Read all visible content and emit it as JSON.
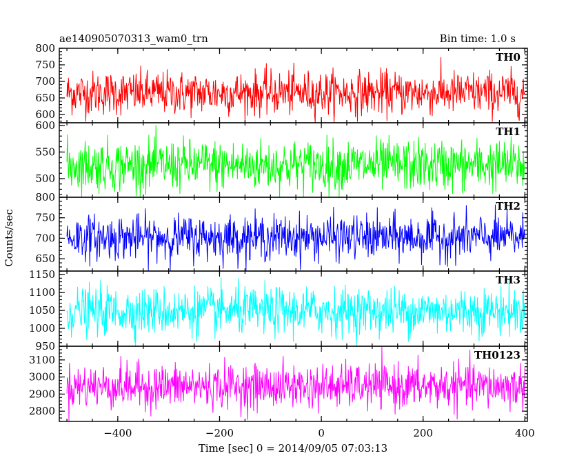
{
  "chart_data": {
    "type": "line",
    "title": "ae140905070313_wam0_trn",
    "subtitle": "Bin time: 1.0 s",
    "xlabel": "Time [sec] 0 = 2014/09/05 07:03:13",
    "ylabel": "Counts/sec",
    "xlim": [
      -515,
      405
    ],
    "xticks": [
      -400,
      -200,
      0,
      200,
      400
    ],
    "xtick_labels": [
      "−400",
      "−200",
      "0",
      "200",
      "400"
    ],
    "x_range": [
      -500,
      400
    ],
    "bin_time_s": 1.0,
    "panels": [
      {
        "name": "TH0",
        "color": "#ff0000",
        "ylim": [
          575,
          800
        ],
        "yticks": [
          600,
          650,
          700,
          750,
          800
        ],
        "mean": 665,
        "sd": 33,
        "min": 575,
        "max": 800
      },
      {
        "name": "TH1",
        "color": "#00ff00",
        "ylim": [
          465,
          605
        ],
        "yticks": [
          500,
          550,
          600
        ],
        "mean": 525,
        "sd": 24,
        "min": 465,
        "max": 603
      },
      {
        "name": "TH2",
        "color": "#0000ff",
        "ylim": [
          620,
          800
        ],
        "yticks": [
          650,
          700,
          750,
          800
        ],
        "mean": 702,
        "sd": 27,
        "min": 620,
        "max": 800
      },
      {
        "name": "TH3",
        "color": "#00ffff",
        "ylim": [
          950,
          1160
        ],
        "yticks": [
          950,
          1000,
          1050,
          1100,
          1150
        ],
        "mean": 1048,
        "sd": 33,
        "min": 950,
        "max": 1160
      },
      {
        "name": "TH0123",
        "color": "#ff00ff",
        "ylim": [
          2740,
          3180
        ],
        "yticks": [
          2800,
          2900,
          3000,
          3100
        ],
        "mean": 2945,
        "sd": 65,
        "min": 2740,
        "max": 3180
      }
    ],
    "grid": false,
    "legend": "none"
  }
}
